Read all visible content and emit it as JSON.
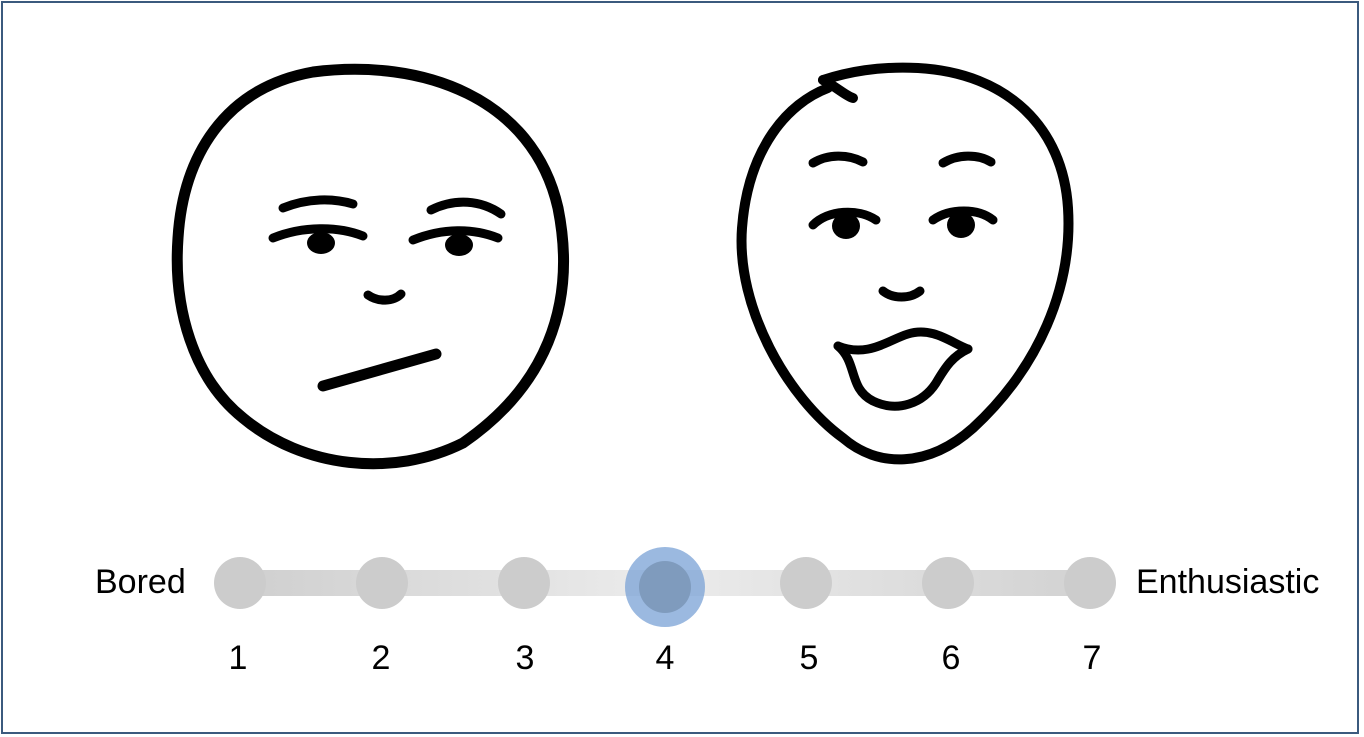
{
  "faces": {
    "left": {
      "icon": "bored-face-icon"
    },
    "right": {
      "icon": "enthusiastic-face-icon"
    }
  },
  "scale": {
    "left_label": "Bored",
    "right_label": "Enthusiastic",
    "points": [
      "1",
      "2",
      "3",
      "4",
      "5",
      "6",
      "7"
    ],
    "selected": "4",
    "colors": {
      "point": "#cccccc",
      "selected": "#7f9bbd",
      "frame": "#3b5a7e"
    }
  }
}
